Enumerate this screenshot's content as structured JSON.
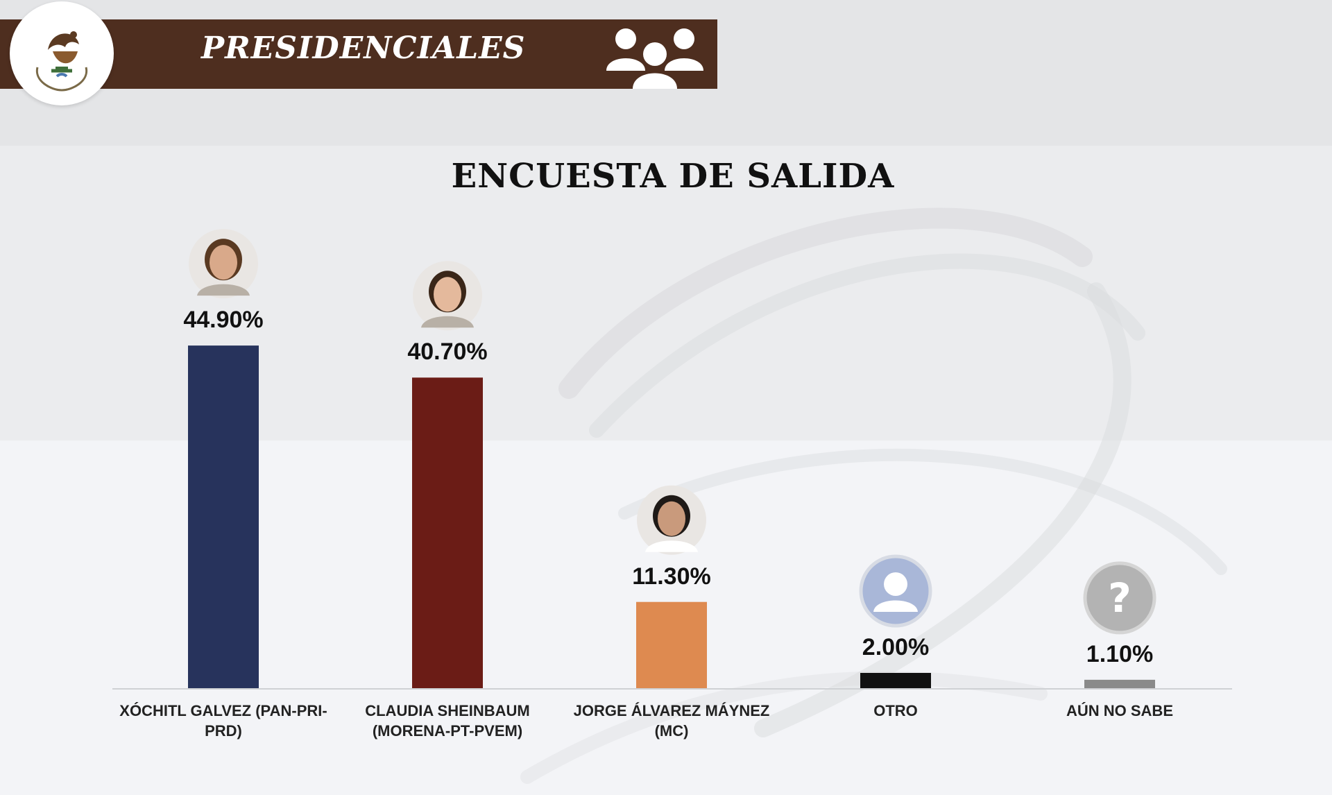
{
  "header": {
    "title": "PRESIDENCIALES",
    "seal_icon": "mexico-coat-of-arms-icon",
    "group_icon": "people-group-icon",
    "bar_color": "#4e2e1f"
  },
  "chart_data": {
    "type": "bar",
    "title": "ENCUESTA DE SALIDA",
    "xlabel": "",
    "ylabel": "",
    "ylim": [
      0,
      50
    ],
    "grid": false,
    "categories": [
      "XÓCHITL GALVEZ (PAN-PRI-PRD)",
      "CLAUDIA SHEINBAUM (MORENA-PT-PVEM)",
      "JORGE ÁLVAREZ MÁYNEZ (MC)",
      "OTRO",
      "AÚN NO SABE"
    ],
    "category_lines": [
      [
        "XÓCHITL GALVEZ (PAN-PRI-",
        "PRD)"
      ],
      [
        "CLAUDIA SHEINBAUM",
        "(MORENA-PT-PVEM)"
      ],
      [
        "JORGE ÁLVAREZ MÁYNEZ (MC)"
      ],
      [
        "OTRO"
      ],
      [
        "AÚN NO SABE"
      ]
    ],
    "values": [
      44.9,
      40.7,
      11.3,
      2.0,
      1.1
    ],
    "value_labels": [
      "44.90%",
      "40.70%",
      "11.30%",
      "2.00%",
      "1.10%"
    ],
    "colors": [
      "#27335c",
      "#6b1c16",
      "#de8a50",
      "#111111",
      "#8a8a8a"
    ],
    "avatars": [
      "candidate-photo",
      "candidate-photo",
      "candidate-photo",
      "generic-user-icon",
      "question-mark-icon"
    ]
  }
}
